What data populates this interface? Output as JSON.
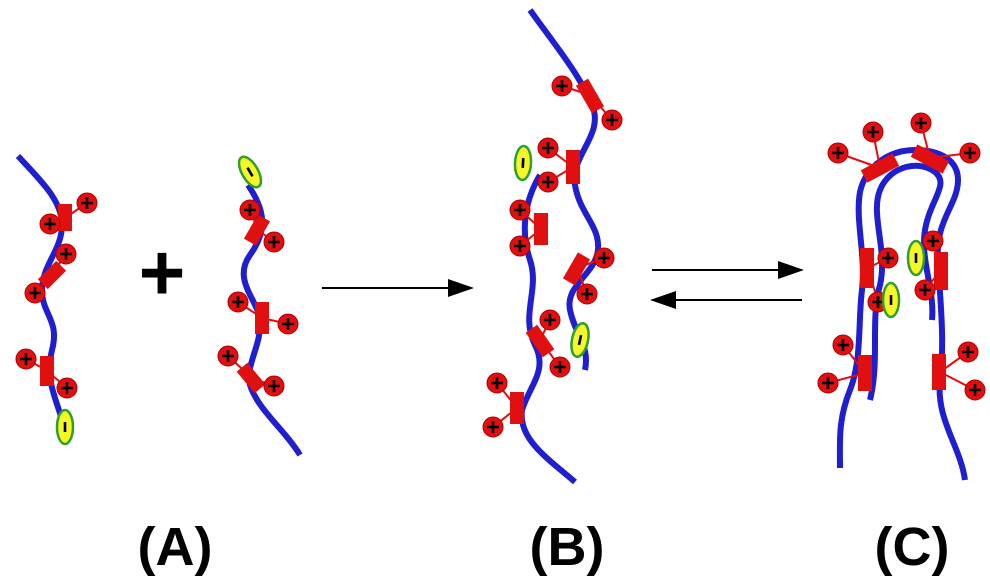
{
  "plus_sign": "+",
  "labels": {
    "a": "(A)",
    "b": "(B)",
    "c": "(C)"
  },
  "charge_symbols": {
    "positive": "+",
    "negative": "-"
  },
  "colors": {
    "backbone": "#1f1fd0",
    "linker": "#e01010",
    "cation": "#e01010",
    "anion_fill": "#f7f728",
    "anion_stroke": "#2e9e2e",
    "text": "#000000"
  },
  "icons": [
    "cationic-group-icon",
    "anionic-group-icon",
    "forward-arrow-icon",
    "equilibrium-arrows-icon"
  ]
}
